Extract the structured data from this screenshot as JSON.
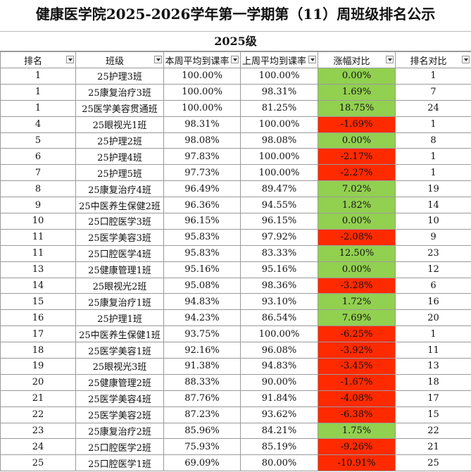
{
  "header": {
    "title": "健康医学院2025-2026学年第一学期第（11）周班级排名公示",
    "subtitle": "2025级"
  },
  "table": {
    "columns": [
      "排名",
      "班级",
      "本周平均到课率",
      "上周平均到课率",
      "涨幅对比",
      "排名对比"
    ],
    "rows": [
      [
        "1",
        "25护理3班",
        "100.00%",
        "100.00%",
        "0.00%",
        "1"
      ],
      [
        "1",
        "25康复治疗3班",
        "100.00%",
        "98.31%",
        "1.69%",
        "7"
      ],
      [
        "1",
        "25医学美容贯通班",
        "100.00%",
        "81.25%",
        "18.75%",
        "24"
      ],
      [
        "4",
        "25眼视光1班",
        "98.31%",
        "100.00%",
        "-1.69%",
        "1"
      ],
      [
        "5",
        "25护理2班",
        "98.08%",
        "98.08%",
        "0.00%",
        "8"
      ],
      [
        "6",
        "25护理4班",
        "97.83%",
        "100.00%",
        "-2.17%",
        "1"
      ],
      [
        "7",
        "25护理5班",
        "97.73%",
        "100.00%",
        "-2.27%",
        "1"
      ],
      [
        "8",
        "25康复治疗4班",
        "96.49%",
        "89.47%",
        "7.02%",
        "19"
      ],
      [
        "9",
        "25中医养生保健2班",
        "96.36%",
        "94.55%",
        "1.82%",
        "14"
      ],
      [
        "10",
        "25口腔医学3班",
        "96.15%",
        "96.15%",
        "0.00%",
        "10"
      ],
      [
        "11",
        "25医学美容3班",
        "95.83%",
        "97.92%",
        "-2.08%",
        "9"
      ],
      [
        "11",
        "25口腔医学4班",
        "95.83%",
        "83.33%",
        "12.50%",
        "23"
      ],
      [
        "13",
        "25健康管理1班",
        "95.16%",
        "95.16%",
        "0.00%",
        "12"
      ],
      [
        "14",
        "25眼视光2班",
        "95.08%",
        "98.36%",
        "-3.28%",
        "6"
      ],
      [
        "15",
        "25康复治疗1班",
        "94.83%",
        "93.10%",
        "1.72%",
        "16"
      ],
      [
        "16",
        "25护理1班",
        "94.23%",
        "86.54%",
        "7.69%",
        "20"
      ],
      [
        "17",
        "25中医养生保健1班",
        "93.75%",
        "100.00%",
        "-6.25%",
        "1"
      ],
      [
        "18",
        "25医学美容1班",
        "92.16%",
        "96.08%",
        "-3.92%",
        "11"
      ],
      [
        "19",
        "25眼视光3班",
        "91.38%",
        "94.83%",
        "-3.45%",
        "13"
      ],
      [
        "20",
        "25健康管理2班",
        "88.33%",
        "90.00%",
        "-1.67%",
        "18"
      ],
      [
        "21",
        "25医学美容4班",
        "87.76%",
        "91.84%",
        "-4.08%",
        "17"
      ],
      [
        "22",
        "25医学美容2班",
        "87.23%",
        "93.62%",
        "-6.38%",
        "15"
      ],
      [
        "23",
        "25康复治疗2班",
        "85.96%",
        "84.21%",
        "1.75%",
        "22"
      ],
      [
        "24",
        "25口腔医学2班",
        "75.93%",
        "85.19%",
        "-9.26%",
        "21"
      ],
      [
        "25",
        "25口腔医学1班",
        "69.09%",
        "80.00%",
        "-10.91%",
        "25"
      ]
    ]
  }
}
